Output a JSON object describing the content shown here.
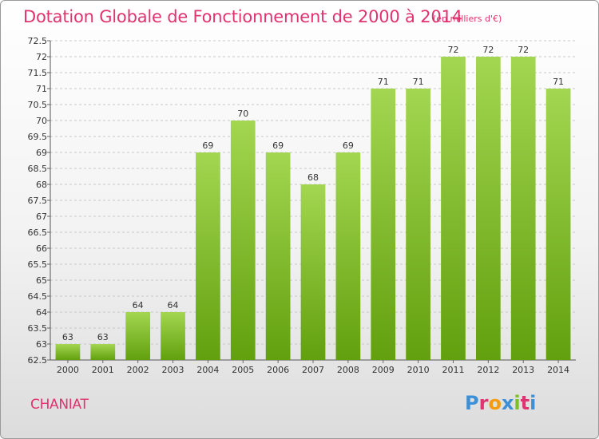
{
  "header": {
    "title": "Dotation Globale de Fonctionnement de 2000 à 2014",
    "unit": "(en milliers d'€)"
  },
  "footer": {
    "commune": "CHANIAT",
    "logo_text": "Proxiti"
  },
  "colors": {
    "accent": "#e0336f",
    "bar_top": "#a3d651",
    "bar_bottom": "#62a00e"
  },
  "chart_data": {
    "type": "bar",
    "title": "Dotation Globale de Fonctionnement de 2000 à 2014",
    "subtitle": "(en milliers d'€)",
    "xlabel": "",
    "ylabel": "",
    "categories": [
      "2000",
      "2001",
      "2002",
      "2003",
      "2004",
      "2005",
      "2006",
      "2007",
      "2008",
      "2009",
      "2010",
      "2011",
      "2012",
      "2013",
      "2014"
    ],
    "values": [
      63,
      63,
      64,
      64,
      69,
      70,
      69,
      68,
      69,
      71,
      71,
      72,
      72,
      72,
      71
    ],
    "ylim": [
      62.5,
      72.5
    ],
    "yticks": [
      "62.5",
      "63",
      "63.5",
      "64",
      "64.5",
      "65",
      "65.5",
      "66",
      "66.5",
      "67",
      "67.5",
      "68",
      "68.5",
      "69",
      "69.5",
      "70",
      "70.5",
      "71",
      "71.5",
      "72",
      "72.5"
    ],
    "grid": true,
    "legend": "none"
  }
}
